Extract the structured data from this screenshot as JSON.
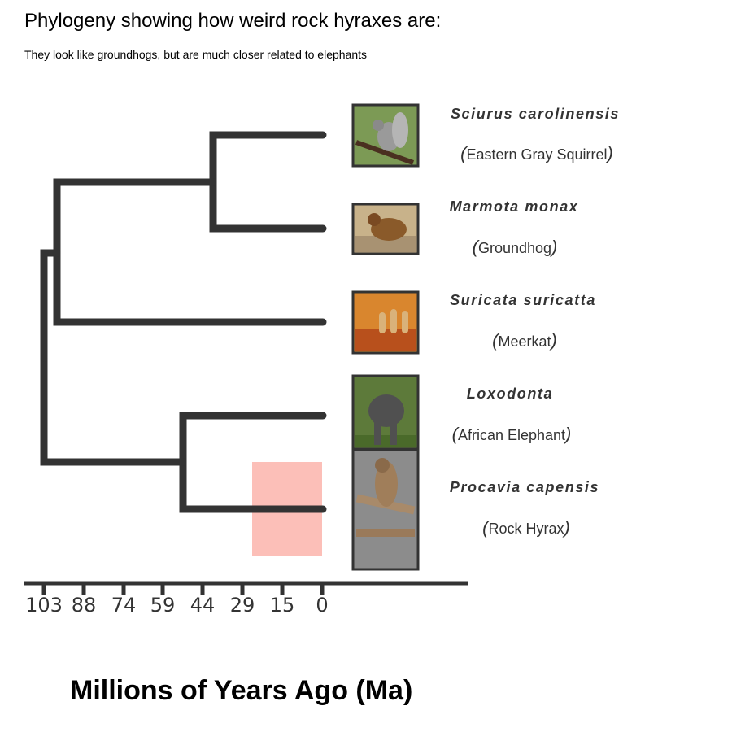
{
  "title": "Phylogeny showing how weird rock hyraxes are:",
  "subtitle": "They look like groundhogs, but are much closer related to elephants",
  "axis": {
    "label": "Millions of Years Ago (Ma)",
    "ticks": [
      "103",
      "88",
      "74",
      "59",
      "44",
      "29",
      "15",
      "0"
    ]
  },
  "taxa": [
    {
      "scientific": "Sciurus carolinensis",
      "common": "Eastern Gray Squirrel",
      "photo": "squirrel-photo"
    },
    {
      "scientific": "Marmota monax",
      "common": "Groundhog",
      "photo": "groundhog-photo"
    },
    {
      "scientific": "Suricata suricatta",
      "common": "Meerkat",
      "photo": "meerkat-photo"
    },
    {
      "scientific": "Loxodonta",
      "common": "African Elephant",
      "photo": "elephant-photo"
    },
    {
      "scientific": "Procavia capensis",
      "common": "Rock Hyrax",
      "photo": "rock-hyrax-photo"
    }
  ],
  "colors": {
    "branch": "#333333",
    "highlight": "#fa8072",
    "photo_frame": "#333333"
  }
}
